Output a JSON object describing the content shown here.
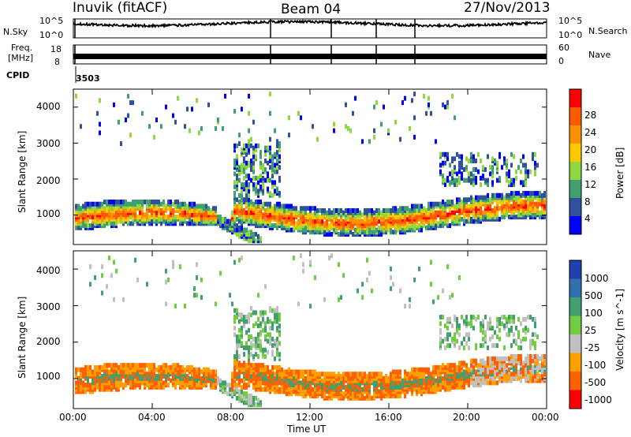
{
  "header": {
    "station": "Inuvik (fitACF)",
    "beam": "Beam 04",
    "date": "27/Nov/2013"
  },
  "noise_panel": {
    "left_label": "N.Sky",
    "right_label": "N.Search",
    "ticks": [
      "10^5",
      "10^0"
    ]
  },
  "freq_panel": {
    "left_label_1": "Freq.",
    "left_label_2": "[MHz]",
    "left_ticks": [
      "18",
      "8"
    ],
    "right_label": "Nave",
    "right_ticks": [
      "60",
      "0"
    ]
  },
  "cpid": {
    "label": "CPID",
    "value": "3503"
  },
  "chart_data": [
    {
      "type": "heatmap",
      "name": "power",
      "ylabel": "Slant Range [km]",
      "xlabel": "",
      "ylim": [
        180,
        4500
      ],
      "yticks": [
        1000,
        2000,
        3000,
        4000
      ],
      "x_ticks": [
        "00:00",
        "04:00",
        "08:00",
        "12:00",
        "16:00",
        "20:00",
        "00:00"
      ],
      "colorbar": {
        "label": "Power [dB]",
        "ticks": [
          "28",
          "24",
          "20",
          "16",
          "12",
          "8",
          "4"
        ],
        "colors": [
          "#ff0000",
          "#ff5a00",
          "#ff9000",
          "#ffc800",
          "#90d840",
          "#40a070",
          "#3050a0",
          "#0000ff"
        ]
      }
    },
    {
      "type": "heatmap",
      "name": "velocity",
      "ylabel": "Slant Range [km]",
      "xlabel": "Time UT",
      "ylim": [
        180,
        4500
      ],
      "yticks": [
        1000,
        2000,
        3000,
        4000
      ],
      "x_ticks": [
        "00:00",
        "04:00",
        "08:00",
        "12:00",
        "16:00",
        "20:00",
        "00:00"
      ],
      "colorbar": {
        "label": "Velocity [m s^-1]",
        "ticks": [
          "1000",
          "500",
          "100",
          "25",
          "-25",
          "-100",
          "-500",
          "-1000"
        ],
        "colors": [
          "#2040b0",
          "#3070b0",
          "#40a070",
          "#70cc40",
          "#c0c0c0",
          "#ffa000",
          "#ff6000",
          "#ff0000"
        ]
      }
    }
  ]
}
